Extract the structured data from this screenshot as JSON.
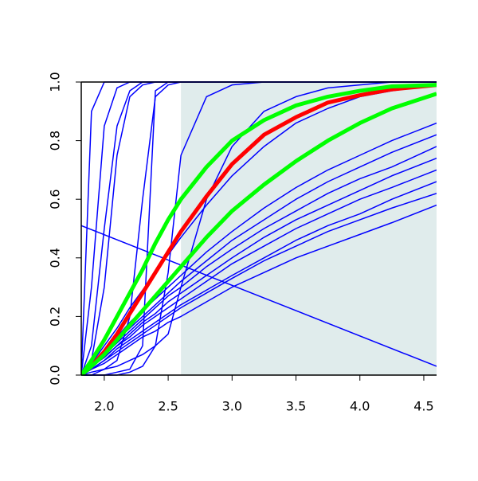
{
  "chart_data": {
    "type": "line",
    "x": [
      1.82,
      1.9,
      2.0,
      2.1,
      2.2,
      2.3,
      2.4,
      2.5,
      2.6,
      2.8,
      3.0,
      3.25,
      3.5,
      3.75,
      4.0,
      4.25,
      4.6
    ],
    "xlim": [
      1.82,
      4.6
    ],
    "ylim": [
      0,
      1
    ],
    "xticks": [
      {
        "value": 2,
        "label": "2.0"
      },
      2.5,
      {
        "value": 3,
        "label": "3.0"
      },
      3.5,
      {
        "value": 4,
        "label": "4.0"
      },
      4.5
    ],
    "yticks": [
      {
        "value": 0,
        "label": "0.0"
      },
      0.2,
      0.4,
      0.6,
      0.8,
      {
        "value": 1,
        "label": "1.0"
      }
    ],
    "shade": {
      "x": [
        2.6,
        4.6
      ],
      "color": "#e0ecec"
    },
    "series": [
      {
        "color": "#0000ff",
        "values": [
          0,
          0.9,
          1,
          1,
          1,
          1,
          1,
          1,
          1,
          1,
          1,
          1,
          1,
          1,
          1,
          1,
          1
        ]
      },
      {
        "color": "#0000ff",
        "values": [
          0,
          0.3,
          0.85,
          0.98,
          1,
          1,
          1,
          1,
          1,
          1,
          1,
          1,
          1,
          1,
          1,
          1,
          1
        ]
      },
      {
        "color": "#0000ff",
        "values": [
          0,
          0.1,
          0.5,
          0.85,
          0.97,
          1,
          1,
          1,
          1,
          1,
          1,
          1,
          1,
          1,
          1,
          1,
          1
        ]
      },
      {
        "color": "#0000ff",
        "values": [
          0,
          0.05,
          0.3,
          0.75,
          0.95,
          0.99,
          1,
          1,
          1,
          1,
          1,
          1,
          1,
          1,
          1,
          1,
          1
        ]
      },
      {
        "color": "#0000ff",
        "values": [
          0,
          0,
          0.02,
          0.05,
          0.2,
          0.6,
          0.95,
          0.99,
          1,
          1,
          1,
          1,
          1,
          1,
          1,
          1,
          1
        ]
      },
      {
        "color": "#0000ff",
        "values": [
          0,
          0,
          0,
          0.01,
          0.02,
          0.1,
          0.97,
          1,
          1,
          1,
          1,
          1,
          1,
          1,
          1,
          1,
          1
        ]
      },
      {
        "color": "#0000ff",
        "values": [
          0,
          0,
          0,
          0,
          0.01,
          0.03,
          0.1,
          0.35,
          0.75,
          0.95,
          0.99,
          1,
          1,
          1,
          1,
          1,
          1
        ]
      },
      {
        "color": "#0000ff",
        "values": [
          0,
          0.01,
          0.02,
          0.03,
          0.05,
          0.07,
          0.1,
          0.14,
          0.3,
          0.6,
          0.78,
          0.9,
          0.95,
          0.98,
          0.99,
          1,
          1
        ]
      },
      {
        "color": "#0000ff",
        "values": [
          0,
          0.02,
          0.05,
          0.08,
          0.11,
          0.14,
          0.17,
          0.2,
          0.23,
          0.28,
          0.33,
          0.39,
          0.44,
          0.49,
          0.53,
          0.57,
          0.62
        ]
      },
      {
        "color": "#0000ff",
        "values": [
          0,
          0.02,
          0.04,
          0.07,
          0.1,
          0.13,
          0.15,
          0.18,
          0.2,
          0.25,
          0.3,
          0.35,
          0.4,
          0.44,
          0.48,
          0.52,
          0.58
        ]
      },
      {
        "color": "#0000ff",
        "values": [
          0,
          0.03,
          0.06,
          0.1,
          0.13,
          0.17,
          0.2,
          0.23,
          0.26,
          0.32,
          0.38,
          0.44,
          0.5,
          0.55,
          0.6,
          0.64,
          0.7
        ]
      },
      {
        "color": "#0000ff",
        "values": [
          0,
          0.03,
          0.07,
          0.11,
          0.15,
          0.19,
          0.23,
          0.27,
          0.3,
          0.37,
          0.43,
          0.5,
          0.56,
          0.62,
          0.67,
          0.71,
          0.78
        ]
      },
      {
        "color": "#0000ff",
        "values": [
          0,
          0.04,
          0.08,
          0.13,
          0.18,
          0.22,
          0.26,
          0.3,
          0.34,
          0.42,
          0.49,
          0.57,
          0.64,
          0.7,
          0.75,
          0.8,
          0.86
        ]
      },
      {
        "color": "#0000ff",
        "values": [
          0,
          0.02,
          0.05,
          0.09,
          0.12,
          0.15,
          0.18,
          0.21,
          0.24,
          0.29,
          0.34,
          0.4,
          0.46,
          0.51,
          0.55,
          0.6,
          0.66
        ]
      },
      {
        "color": "#0000ff",
        "values": [
          0,
          0.03,
          0.06,
          0.1,
          0.14,
          0.18,
          0.21,
          0.25,
          0.28,
          0.34,
          0.4,
          0.47,
          0.53,
          0.58,
          0.63,
          0.68,
          0.74
        ]
      },
      {
        "color": "#0000ff",
        "values": [
          0,
          0.04,
          0.08,
          0.12,
          0.16,
          0.2,
          0.24,
          0.28,
          0.32,
          0.39,
          0.46,
          0.53,
          0.6,
          0.66,
          0.71,
          0.76,
          0.82
        ]
      },
      {
        "color": "#0000ff",
        "values": [
          0,
          0.04,
          0.1,
          0.16,
          0.23,
          0.29,
          0.35,
          0.41,
          0.47,
          0.58,
          0.68,
          0.78,
          0.86,
          0.91,
          0.95,
          0.97,
          0.99
        ]
      },
      {
        "color": "#0000ff",
        "x": [
          1.82,
          4.6
        ],
        "values": [
          0.51,
          0.03
        ]
      },
      {
        "color": "#ff0000",
        "width": 5,
        "values": [
          0,
          0.03,
          0.08,
          0.14,
          0.21,
          0.28,
          0.35,
          0.42,
          0.49,
          0.61,
          0.72,
          0.82,
          0.88,
          0.93,
          0.955,
          0.975,
          0.99
        ]
      },
      {
        "color": "#00ff00",
        "width": 5,
        "values": [
          0,
          0.05,
          0.12,
          0.2,
          0.28,
          0.36,
          0.45,
          0.53,
          0.6,
          0.71,
          0.8,
          0.87,
          0.92,
          0.95,
          0.97,
          0.985,
          0.99
        ]
      },
      {
        "color": "#00ff00",
        "width": 5,
        "values": [
          0,
          0.03,
          0.07,
          0.12,
          0.17,
          0.22,
          0.27,
          0.32,
          0.37,
          0.47,
          0.56,
          0.65,
          0.73,
          0.8,
          0.86,
          0.91,
          0.96
        ]
      }
    ]
  }
}
